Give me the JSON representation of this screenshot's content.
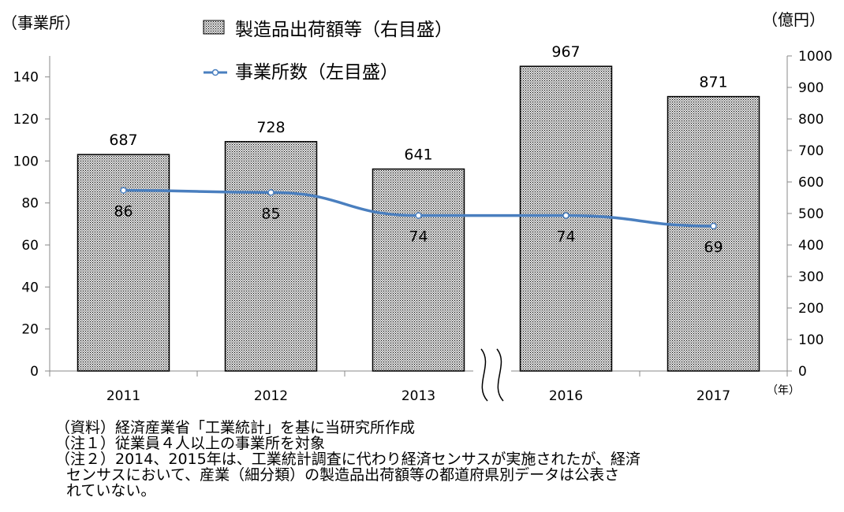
{
  "chart_data": {
    "type": "bar",
    "categories": [
      "2011",
      "2012",
      "2013",
      "2016",
      "2017"
    ],
    "series": [
      {
        "name": "製造品出荷額等（右目盛）",
        "type": "bar",
        "axis": "right",
        "values": [
          687,
          728,
          641,
          967,
          871
        ]
      },
      {
        "name": "事業所数（左目盛）",
        "type": "line",
        "axis": "left",
        "values": [
          86,
          85,
          74,
          74,
          69
        ]
      }
    ],
    "left_axis": {
      "label": "（事業所）",
      "ylim": [
        0,
        150
      ],
      "ticks": [
        0,
        20,
        40,
        60,
        80,
        100,
        120,
        140
      ]
    },
    "right_axis": {
      "label": "（億円）",
      "ylim": [
        0,
        1000
      ],
      "ticks": [
        0,
        100,
        200,
        300,
        400,
        500,
        600,
        700,
        800,
        900,
        1000
      ]
    },
    "xunit": "（年）",
    "axis_break_between": [
      "2013",
      "2016"
    ],
    "legend_position": "top-center",
    "grid": false,
    "colors": {
      "bar_fill": "#d8d8d8",
      "bar_pattern_dot": "#000000",
      "line": "#4a7fbf"
    }
  },
  "notes": [
    "（資料）経済産業省「工業統計」を基に当研究所作成",
    "（注１）従業員４人以上の事業所を対象",
    "（注２）2014、2015年は、工業統計調査に代わり経済センサスが実施されたが、経済",
    "センサスにおいて、産業（細分類）の製造品出荷額等の都道府県別データは公表さ",
    "れていない。"
  ]
}
